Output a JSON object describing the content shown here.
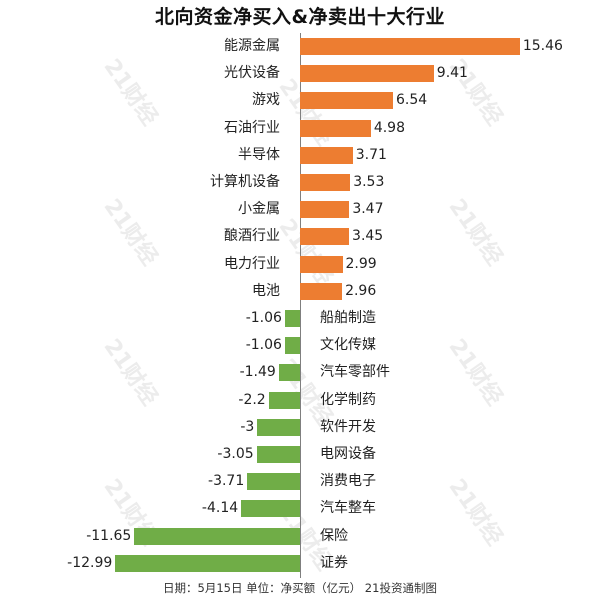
{
  "title": "北向资金净买入&净卖出十大行业",
  "footer": "日期：5月15日 单位：净买额（亿元） 21投资通制图",
  "watermark": "21财经",
  "colors": {
    "positive": "#ed7d31",
    "negative": "#70ad47",
    "axis": "#7f7f7f"
  },
  "chart_data": {
    "type": "bar",
    "orientation": "horizontal",
    "title": "北向资金净买入&净卖出十大行业",
    "xlabel": "净买额（亿元）",
    "ylabel": "",
    "categories": [
      "能源金属",
      "光伏设备",
      "游戏",
      "石油行业",
      "半导体",
      "计算机设备",
      "小金属",
      "酿酒行业",
      "电力行业",
      "电池",
      "船舶制造",
      "文化传媒",
      "汽车零部件",
      "化学制药",
      "软件开发",
      "电网设备",
      "消费电子",
      "汽车整车",
      "保险",
      "证券"
    ],
    "values": [
      15.46,
      9.41,
      6.54,
      4.98,
      3.71,
      3.53,
      3.47,
      3.45,
      2.99,
      2.96,
      -1.06,
      -1.06,
      -1.49,
      -2.2,
      -3,
      -3.05,
      -3.71,
      -4.14,
      -11.65,
      -12.99
    ],
    "value_labels": [
      "15.46",
      "9.41",
      "6.54",
      "4.98",
      "3.71",
      "3.53",
      "3.47",
      "3.45",
      "2.99",
      "2.96",
      "-1.06",
      "-1.06",
      "-1.49",
      "-2.2",
      "-3",
      "-3.05",
      "-3.71",
      "-4.14",
      "-11.65",
      "-12.99"
    ],
    "series": [
      {
        "name": "净买入",
        "color": "#ed7d31"
      },
      {
        "name": "净卖出",
        "color": "#70ad47"
      }
    ],
    "xlim": [
      -13,
      16
    ],
    "grid": false,
    "legend": "none",
    "note": "日期：5月15日 单位：净买额（亿元） 21投资通制图"
  }
}
